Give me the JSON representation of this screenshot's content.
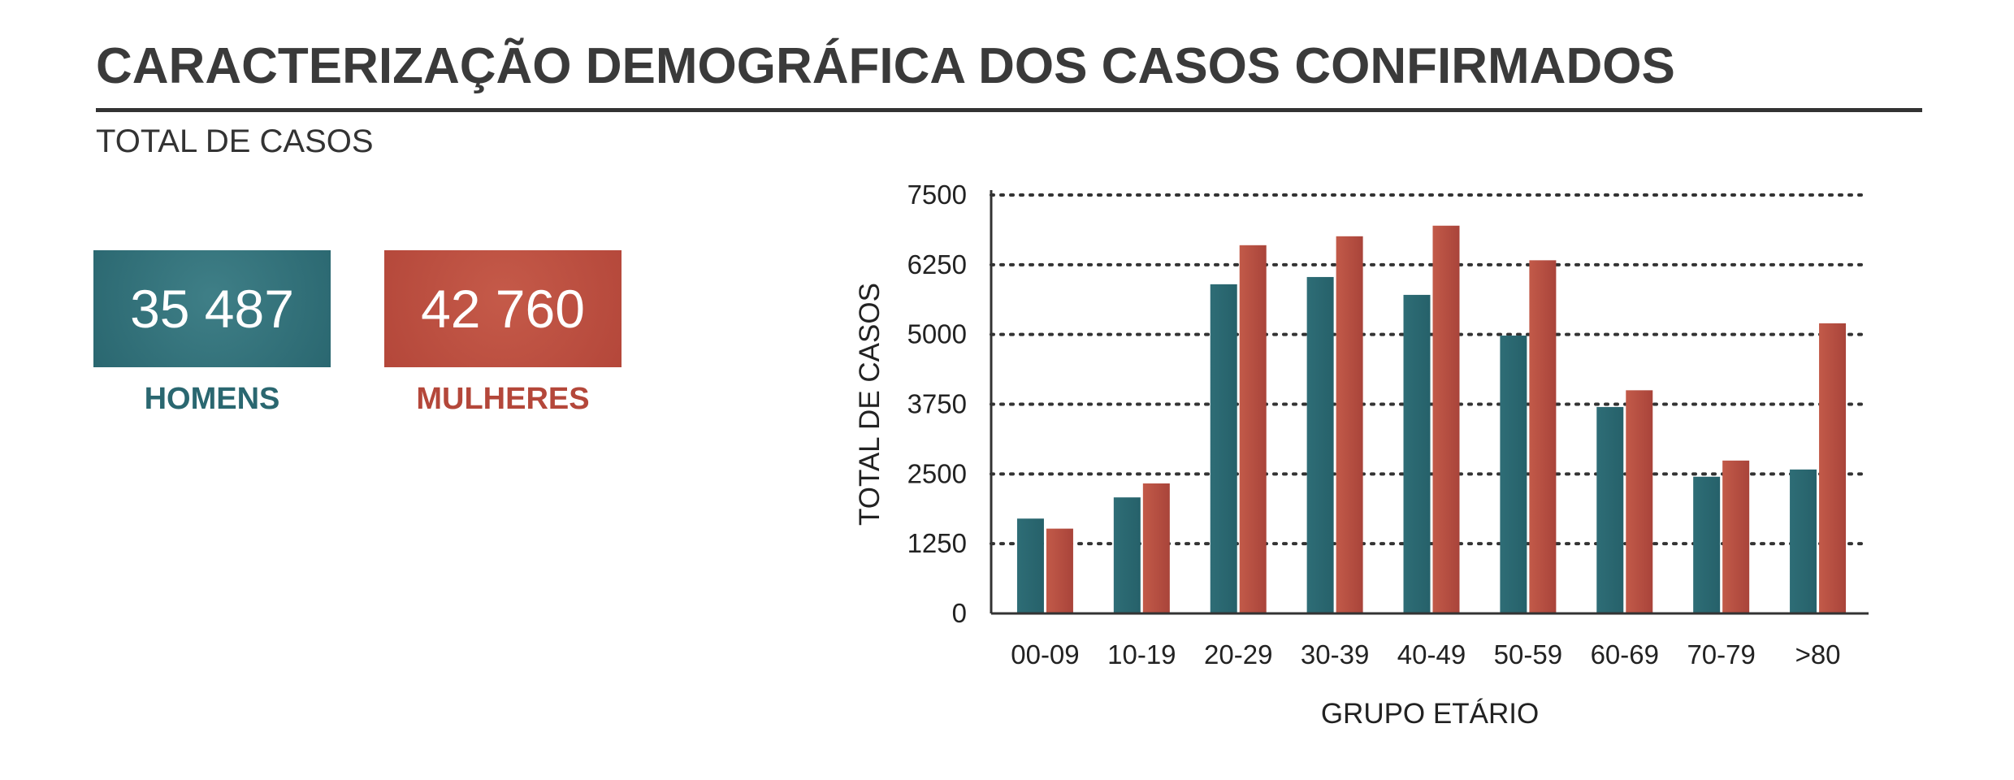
{
  "header": {
    "title": "CARACTERIZAÇÃO DEMOGRÁFICA DOS CASOS CONFIRMADOS",
    "subtitle": "TOTAL DE CASOS"
  },
  "kpis": {
    "men": {
      "value": "35 487",
      "label": "HOMENS",
      "color": "#2a6770"
    },
    "women": {
      "value": "42 760",
      "label": "MULHERES",
      "color": "#b4473a"
    }
  },
  "chart_data": {
    "type": "bar",
    "xlabel": "GRUPO ETÁRIO",
    "ylabel": "TOTAL DE CASOS",
    "ylim": [
      0,
      7500
    ],
    "yticks": [
      0,
      1250,
      2500,
      3750,
      5000,
      6250,
      7500
    ],
    "grid": true,
    "categories": [
      "00-09",
      "10-19",
      "20-29",
      "30-39",
      "40-49",
      "50-59",
      "60-69",
      "70-79",
      ">80"
    ],
    "series": [
      {
        "name": "HOMENS",
        "color": "#2a6770",
        "values": [
          1700,
          2080,
          5900,
          6030,
          5710,
          4980,
          3700,
          2450,
          2580
        ]
      },
      {
        "name": "MULHERES",
        "color": "#b4473a",
        "values": [
          1520,
          2330,
          6600,
          6760,
          6950,
          6330,
          4000,
          2740,
          5200
        ]
      }
    ]
  }
}
